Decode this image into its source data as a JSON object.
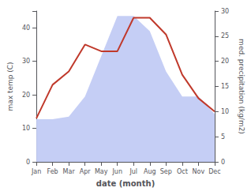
{
  "chart_data": {
    "type": "line",
    "xlabel": "date (month)",
    "ylabel": "max temp (C)",
    "y2label": "med. precipitation (kg/m2)",
    "categories": [
      "Jan",
      "Feb",
      "Mar",
      "Apr",
      "May",
      "Jun",
      "Jul",
      "Aug",
      "Sep",
      "Oct",
      "Nov",
      "Dec"
    ],
    "series": [
      {
        "type": "area",
        "axis": "y2",
        "color": "#c5cef5",
        "values": [
          8.5,
          8.5,
          9,
          13,
          21,
          29,
          29,
          26,
          18,
          13,
          13,
          9.5
        ]
      },
      {
        "type": "line",
        "color": "#c0392b",
        "values": [
          13,
          23,
          27,
          35,
          33,
          33,
          43,
          43,
          38,
          26,
          19,
          15
        ]
      }
    ],
    "ylim": [
      0,
      45
    ],
    "yticks": [
      0,
      10,
      20,
      30,
      40
    ],
    "y2lim": [
      0,
      30
    ],
    "y2ticks": [
      0,
      5,
      10,
      15,
      20,
      25,
      30
    ],
    "grid": false
  }
}
